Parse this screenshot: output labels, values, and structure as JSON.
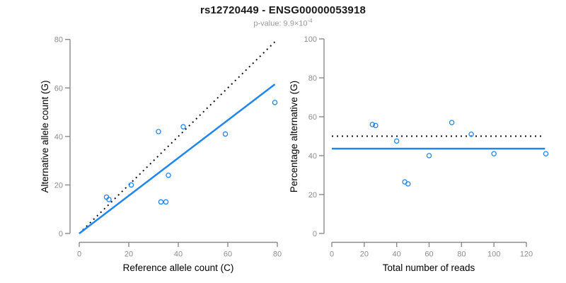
{
  "header": {
    "title": "rs12720449 - ENSG00000053918",
    "subtitle_prefix": "p-value: 9.9×10",
    "subtitle_exponent": "-4"
  },
  "colors": {
    "accent_blue": "#1e86ee",
    "dotted_black": "#111111",
    "axis_gray": "#8a8a8a",
    "tick_label_gray": "#8c8c8c",
    "axis_title_black": "#1a1a1a",
    "subtitle_gray": "#999999"
  },
  "chart_data": [
    {
      "type": "scatter",
      "panel": "allele-counts",
      "xlabel": "Reference allele count (C)",
      "ylabel": "Alternative allele count (G)",
      "xlim": [
        0,
        80
      ],
      "ylim": [
        0,
        80
      ],
      "xticks": [
        0,
        20,
        40,
        60,
        80
      ],
      "yticks": [
        0,
        20,
        40,
        60,
        80
      ],
      "grid": false,
      "points": [
        [
          11,
          15
        ],
        [
          12,
          14
        ],
        [
          21,
          20
        ],
        [
          32,
          42
        ],
        [
          33,
          13
        ],
        [
          35,
          13
        ],
        [
          36,
          24
        ],
        [
          42,
          44
        ],
        [
          59,
          41
        ],
        [
          79,
          54
        ]
      ],
      "lines": [
        {
          "name": "identity-line",
          "style": "dotted",
          "color": "black",
          "x1": 0,
          "y1": 0,
          "x2": 79,
          "y2": 79
        },
        {
          "name": "regression-line",
          "style": "solid",
          "color": "blue",
          "x1": 0,
          "y1": 0,
          "x2": 79,
          "y2": 61.5
        }
      ]
    },
    {
      "type": "scatter",
      "panel": "percentage-vs-reads",
      "xlabel": "Total number of reads",
      "ylabel": "Percentage alternative (G)",
      "xlim": [
        0,
        135
      ],
      "ylim": [
        0,
        100
      ],
      "xticks": [
        0,
        20,
        40,
        60,
        80,
        100,
        120
      ],
      "yticks": [
        0,
        20,
        40,
        60,
        80,
        100
      ],
      "grid": false,
      "points": [
        [
          25,
          56
        ],
        [
          27,
          55.5
        ],
        [
          40,
          47.5
        ],
        [
          45,
          26.5
        ],
        [
          47,
          25.5
        ],
        [
          60,
          40
        ],
        [
          74,
          57
        ],
        [
          86,
          51
        ],
        [
          100,
          41
        ],
        [
          132,
          41
        ]
      ],
      "lines": [
        {
          "name": "expected-50pct-line",
          "style": "dotted",
          "color": "black",
          "x1": 0,
          "y1": 50,
          "x2": 130,
          "y2": 50
        },
        {
          "name": "mean-percentage-line",
          "style": "solid",
          "color": "blue",
          "x1": 0,
          "y1": 43.6,
          "x2": 131.5,
          "y2": 43.6
        }
      ]
    }
  ]
}
